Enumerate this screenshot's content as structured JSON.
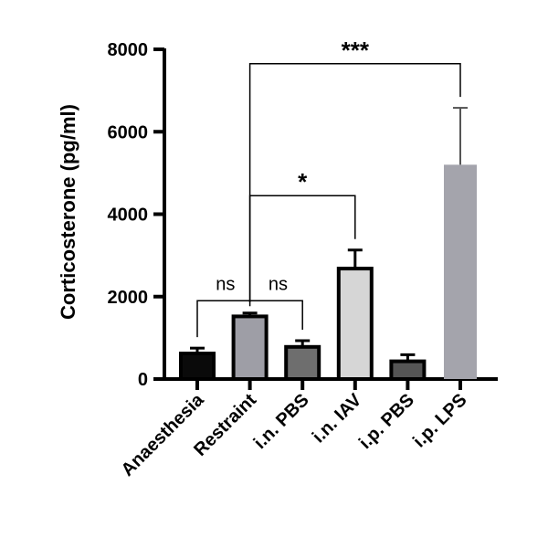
{
  "chart_data": {
    "type": "bar",
    "ylabel": "Corticosterone (pg/ml)",
    "xlabel": "",
    "ylim": [
      0,
      8000
    ],
    "yticks": [
      0,
      2000,
      4000,
      6000,
      8000
    ],
    "yticklabels": [
      "0",
      "2000",
      "4000",
      "6000",
      "8000"
    ],
    "categories": [
      "Anaesthesia",
      "Restraint",
      "i.n. PBS",
      "i.n. IAV",
      "i.p. PBS",
      "i.p. LPS"
    ],
    "values": [
      620,
      1520,
      780,
      2680,
      430,
      5200
    ],
    "errors": [
      130,
      80,
      150,
      450,
      160,
      1380
    ],
    "colors": [
      "#0a0a0a",
      "#9e9ea6",
      "#6e6e6e",
      "#d6d6d6",
      "#555555",
      "#a4a4ac"
    ],
    "outlined": [
      true,
      true,
      true,
      true,
      true,
      false
    ],
    "significance": [
      {
        "from": 0,
        "to": 2,
        "via": 1,
        "y": 1900,
        "labels": [
          "ns",
          "ns"
        ]
      },
      {
        "from": 1,
        "to": 3,
        "y": 4450,
        "label": "*"
      },
      {
        "from": 1,
        "to": 5,
        "y": 7650,
        "label": "***"
      }
    ]
  }
}
